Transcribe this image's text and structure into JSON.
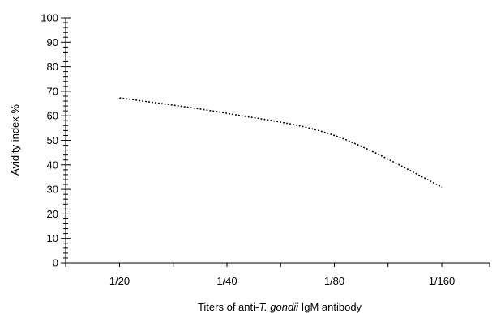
{
  "chart_data": {
    "type": "line",
    "title": "",
    "xlabel_parts": [
      "Titers of anti-",
      "T. gondii",
      " IgM antibody"
    ],
    "ylabel": "Avidity index %",
    "categories": [
      "1/20",
      "1/40",
      "1/80",
      "1/160"
    ],
    "series": [
      {
        "values": [
          67.3,
          61.0,
          52.0,
          31.0
        ],
        "line_style": "dotted",
        "color": "#000000"
      }
    ],
    "ylim": [
      0,
      100
    ],
    "y_ticks": [
      "0",
      "10",
      "20",
      "30",
      "40",
      "50",
      "60",
      "70",
      "80",
      "90",
      "100"
    ],
    "y_minor_step": 2,
    "grid": false,
    "legend": "none"
  }
}
